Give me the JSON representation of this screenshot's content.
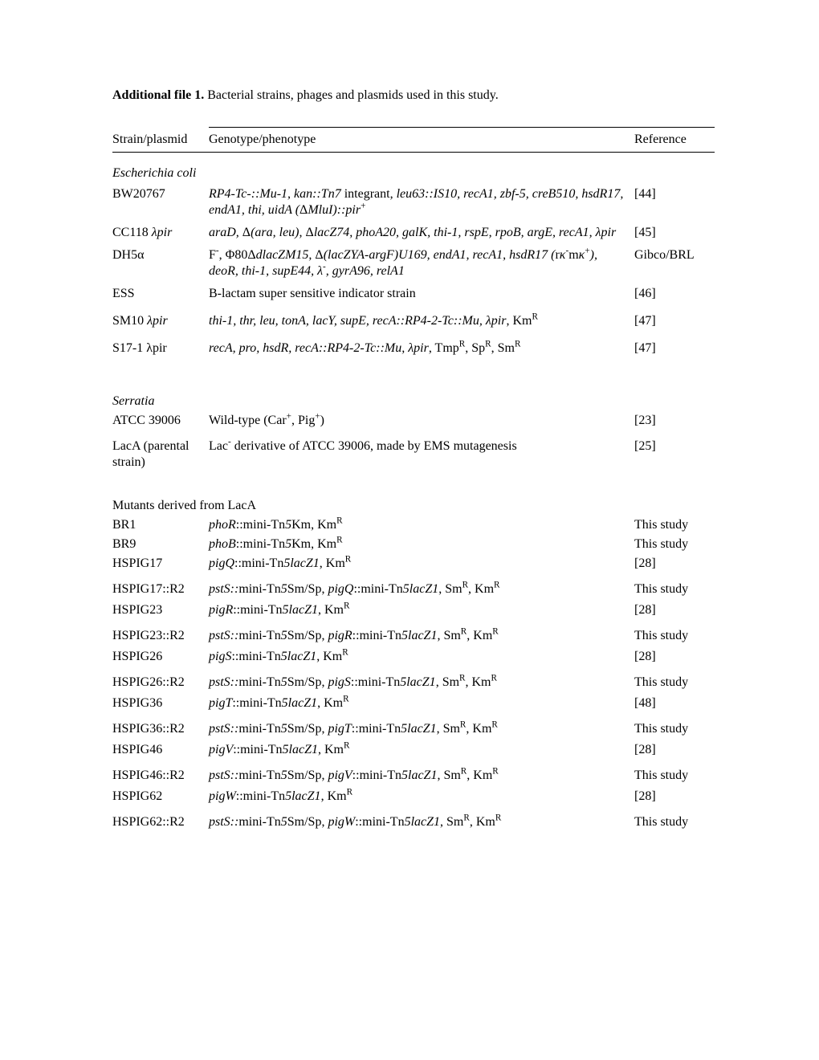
{
  "title_bold": "Additional file 1.",
  "title_rest": " Bacterial strains, phages and plasmids used in this study.",
  "headers": {
    "col1": "Strain/plasmid",
    "col2": "Genotype/phenotype",
    "col3": "Reference"
  },
  "section_ecoli": "Escherichia coli",
  "ecoli": {
    "bw20767": {
      "name": "BW20767",
      "geno": "<em>RP4-Tc-::Mu-1, kan::Tn7</em> integrant<em>, leu63::IS10, recA1, zbf-5, creB510, hsdR17, endA1, thi, uidA (</em>Δ<em>MluI)::pir</em><sup>+</sup>",
      "ref": "[44]"
    },
    "cc118": {
      "name": "CC118 <em>λpir</em>",
      "geno": "<em>araD, </em>Δ<em>(ara, leu), </em>Δ<em>lacZ74, phoA20, galK, thi-1, rspE, rpoB, argE, recA1, λpir</em>",
      "ref": "[45]"
    },
    "dh5a": {
      "name": "DH5α",
      "geno": "F<sup>-</sup>, Φ80Δ<em>dlacZM15, </em>Δ<em>(lacZYA-argF)U169, endA1, recA1, hsdR17 (</em>r<em>κ</em><sup>-</sup>m<em>κ</em><sup>+</sup><em>), deoR, thi-1, supE44, λ</em><sup>-</sup><em>, gyrA96, relA1</em>",
      "ref": "Gibco/BRL"
    },
    "ess": {
      "name": "ESS",
      "geno": "B-lactam super sensitive indicator strain",
      "ref": "[46]"
    },
    "sm10": {
      "name": "SM10 <em>λpir</em>",
      "geno": "<em>thi-1, thr, leu, tonA, lacY, supE, recA::RP4-2-Tc::Mu, λpir</em>, Km<sup>R</sup>",
      "ref": "[47]"
    },
    "s171": {
      "name": "S17-1 λpir",
      "geno": "<em>recA, pro, hsdR, recA::RP4-2-Tc::Mu, λpir</em>, Tmp<sup>R</sup>, Sp<sup>R</sup>, Sm<sup>R</sup>",
      "ref": "[47]"
    }
  },
  "section_serratia": "Serratia",
  "serratia": {
    "atcc": {
      "name": "ATCC 39006",
      "geno": "Wild-type (Car<sup>+</sup>, Pig<sup>+</sup>)",
      "ref": "[23]"
    },
    "laca": {
      "name": "LacA (parental strain)",
      "geno": "Lac<sup>-</sup> derivative of ATCC 39006, made by EMS mutagenesis",
      "ref": "[25]"
    }
  },
  "section_mutants": "Mutants derived from LacA",
  "mutants": {
    "br1": {
      "name": "BR1",
      "geno": "<em>phoR</em>::mini-Tn<em>5</em>Km, Km<sup>R</sup>",
      "ref": "This study"
    },
    "br9": {
      "name": "BR9",
      "geno": "<em>phoB</em>::mini-Tn<em>5</em>Km, Km<sup>R</sup>",
      "ref": "This study"
    },
    "h17": {
      "name": "HSPIG17",
      "geno": "<em>pigQ</em>::mini-Tn<em>5lacZ1</em>, Km<sup>R</sup>",
      "ref": "[28]"
    },
    "h17r2": {
      "name": "HSPIG17::R2",
      "geno": "<em>pstS::</em>mini-Tn<em>5</em>Sm/Sp, <em>pigQ</em>::mini-Tn<em>5lacZ1</em>, Sm<sup>R</sup>, Km<sup>R</sup>",
      "ref": "This study"
    },
    "h23": {
      "name": "HSPIG23",
      "geno": "<em>pigR</em>::mini-Tn<em>5lacZ1</em>, Km<sup>R</sup>",
      "ref": "[28]"
    },
    "h23r2": {
      "name": "HSPIG23::R2",
      "geno": "<em>pstS::</em>mini-Tn<em>5</em>Sm/Sp, <em>pigR</em>::mini-Tn<em>5lacZ1</em>, Sm<sup>R</sup>, Km<sup>R</sup>",
      "ref": "This study"
    },
    "h26": {
      "name": "HSPIG26",
      "geno": "<em>pigS</em>::mini-Tn<em>5lacZ1</em>, Km<sup>R</sup>",
      "ref": "[28]"
    },
    "h26r2": {
      "name": "HSPIG26::R2",
      "geno": "<em>pstS::</em>mini-Tn<em>5</em>Sm/Sp, <em>pigS</em>::mini-Tn<em>5lacZ1</em>, Sm<sup>R</sup>, Km<sup>R</sup>",
      "ref": "This study"
    },
    "h36": {
      "name": "HSPIG36",
      "geno": "<em>pigT</em>::mini-Tn<em>5lacZ1</em>, Km<sup>R</sup>",
      "ref": "[48]"
    },
    "h36r2": {
      "name": "HSPIG36::R2",
      "geno": "<em>pstS::</em>mini-Tn<em>5</em>Sm/Sp, <em>pigT</em>::mini-Tn<em>5lacZ1</em>, Sm<sup>R</sup>, Km<sup>R</sup>",
      "ref": "This study"
    },
    "h46": {
      "name": "HSPIG46",
      "geno": "<em>pigV</em>::mini-Tn<em>5lacZ1</em>, Km<sup>R</sup>",
      "ref": "[28]"
    },
    "h46r2": {
      "name": "HSPIG46::R2",
      "geno": "<em>pstS::</em>mini-Tn<em>5</em>Sm/Sp, <em>pigV</em>::mini-Tn<em>5lacZ1</em>, Sm<sup>R</sup>, Km<sup>R</sup>",
      "ref": "This study"
    },
    "h62": {
      "name": "HSPIG62",
      "geno": "<em>pigW</em>::mini-Tn<em>5lacZ1</em>, Km<sup>R</sup>",
      "ref": "[28]"
    },
    "h62r2": {
      "name": "HSPIG62::R2",
      "geno": "<em>pstS::</em>mini-Tn<em>5</em>Sm/Sp, <em>pigW</em>::mini-Tn<em>5lacZ1</em>, Sm<sup>R</sup>, Km<sup>R</sup>",
      "ref": "This study"
    }
  }
}
